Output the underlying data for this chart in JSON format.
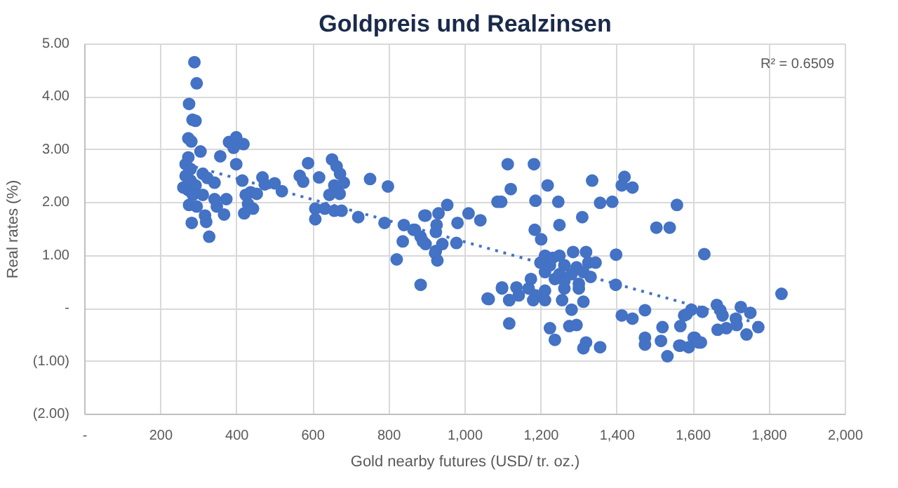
{
  "chart_data": {
    "type": "scatter",
    "title": "Goldpreis und Realzinsen",
    "xlabel": "Gold nearby futures (USD/ tr. oz.)",
    "ylabel": "Real rates (%)",
    "series": [
      {
        "color": "#4472c4",
        "marker": "circle",
        "x": [
          288,
          294,
          274,
          283,
          291,
          272,
          280,
          304,
          272,
          265,
          278,
          265,
          278,
          259,
          272,
          291,
          310,
          322,
          341,
          284,
          310,
          341,
          274,
          294,
          347,
          372,
          316,
          366,
          281,
          319,
          327,
          356,
          379,
          398,
          417,
          391,
          398,
          414,
          423,
          436,
          452,
          429,
          419,
          442,
          467,
          473,
          499,
          518,
          565,
          574,
          587,
          616,
          650,
          662,
          671,
          681,
          656,
          643,
          670,
          606,
          606,
          631,
          656,
          675,
          719,
          750,
          797,
          788,
          839,
          896,
          953,
          930,
          980,
          1009,
          1040,
          868,
          883,
          896,
          836,
          923,
          940,
          923,
          927,
          977,
          820,
          883,
          1085,
          1095,
          1062,
          1097,
          1116,
          1116,
          1112,
          1181,
          1120,
          1185,
          1217,
          1245,
          1334,
          1419,
          1412,
          1440,
          1355,
          1387,
          1557,
          1503,
          1538,
          1308,
          1183,
          1200,
          1248,
          893,
          925,
          864,
          889,
          921,
          1629,
          1397,
          1396,
          1210,
          1230,
          1248,
          1284,
          1318,
          1198,
          1223,
          1261,
          1293,
          1324,
          1343,
          1210,
          1248,
          1280,
          1311,
          1330,
          1173,
          1236,
          1261,
          1299,
          1135,
          1097,
          1167,
          1210,
          1261,
          1299,
          1141,
          1185,
          1059,
          1116,
          1179,
          1210,
          1255,
          1311,
          1280,
          1223,
          1236,
          1274,
          1293,
          1318,
          1311,
          1355,
          1412,
          1440,
          1473,
          1473,
          1473,
          1519,
          1515,
          1532,
          1566,
          1566,
          1588,
          1576,
          1595,
          1604,
          1620,
          1624,
          1832,
          1662,
          1671,
          1677,
          1725,
          1750,
          1712,
          1714,
          1664,
          1687,
          1771,
          1740,
          1582,
          1601,
          1614,
          1563
        ],
        "values": [
          4.66,
          4.26,
          3.87,
          3.57,
          3.55,
          3.22,
          3.16,
          2.97,
          2.86,
          2.73,
          2.64,
          2.51,
          2.42,
          2.29,
          2.24,
          2.33,
          2.55,
          2.47,
          2.38,
          2.15,
          2.15,
          2.07,
          1.96,
          1.93,
          1.93,
          2.07,
          1.76,
          1.78,
          1.62,
          1.64,
          1.36,
          2.88,
          3.15,
          3.24,
          3.11,
          3.04,
          2.73,
          2.42,
          2.15,
          2.2,
          2.17,
          1.98,
          1.8,
          1.89,
          2.48,
          2.35,
          2.37,
          2.22,
          2.51,
          2.4,
          2.75,
          2.48,
          2.82,
          2.69,
          2.55,
          2.38,
          2.33,
          2.15,
          2.17,
          1.89,
          1.69,
          1.89,
          1.85,
          1.85,
          1.73,
          2.45,
          2.31,
          1.62,
          1.58,
          1.76,
          1.96,
          1.8,
          1.62,
          1.8,
          1.67,
          1.49,
          1.36,
          1.22,
          1.27,
          1.45,
          1.22,
          1.09,
          0.91,
          1.24,
          0.93,
          0.45,
          2.02,
          2.02,
          0.18,
          0.4,
          0.16,
          -0.28,
          2.73,
          2.73,
          2.26,
          2.04,
          2.33,
          2.02,
          2.42,
          2.49,
          2.33,
          2.29,
          2.0,
          2.02,
          1.96,
          1.53,
          1.53,
          1.73,
          1.49,
          1.31,
          1.58,
          1.76,
          1.58,
          1.49,
          1.27,
          1.05,
          1.03,
          1.02,
          0.45,
          1.0,
          0.96,
          1.0,
          1.07,
          1.07,
          0.87,
          0.82,
          0.82,
          0.78,
          0.87,
          0.87,
          0.69,
          0.65,
          0.65,
          0.69,
          0.6,
          0.56,
          0.56,
          0.52,
          0.47,
          0.4,
          0.38,
          0.38,
          0.34,
          0.38,
          0.38,
          0.25,
          0.25,
          0.19,
          0.16,
          0.16,
          0.16,
          0.16,
          0.13,
          -0.02,
          -0.37,
          -0.59,
          -0.33,
          -0.31,
          -0.64,
          -0.75,
          -0.73,
          -0.13,
          -0.19,
          -0.03,
          -0.55,
          -0.68,
          -0.35,
          -0.61,
          -0.9,
          -0.33,
          -0.7,
          -0.73,
          -0.13,
          -0.02,
          -0.55,
          -0.64,
          -0.06,
          0.28,
          0.07,
          -0.03,
          -0.13,
          0.03,
          -0.08,
          -0.19,
          -0.31,
          -0.4,
          -0.37,
          -0.35,
          -0.49,
          -0.11,
          -0.55,
          -0.64,
          -0.7
        ]
      },
      {
        "type": "line",
        "color": "#4472c4",
        "line_style": "dotted",
        "x": [
          290,
          1780
        ],
        "values": [
          2.68,
          -0.3
        ]
      }
    ],
    "annotations": [
      "R² = 0.6509"
    ],
    "xlim": [
      0,
      2000
    ],
    "ylim": [
      -2,
      5
    ],
    "xticks": [
      {
        "value": 0,
        "label": "-"
      },
      200,
      400,
      600,
      800,
      {
        "value": 1000,
        "label": "1,000"
      },
      {
        "value": 1200,
        "label": "1,200"
      },
      {
        "value": 1400,
        "label": "1,400"
      },
      {
        "value": 1600,
        "label": "1,600"
      },
      {
        "value": 1800,
        "label": "1,800"
      },
      {
        "value": 2000,
        "label": "2,000"
      }
    ],
    "yticks": [
      {
        "value": -2,
        "label": "(2.00)"
      },
      {
        "value": -1,
        "label": "(1.00)"
      },
      {
        "value": 0,
        "label": "-"
      },
      {
        "value": 1,
        "label": "1.00"
      },
      {
        "value": 2,
        "label": "2.00"
      },
      {
        "value": 3,
        "label": "3.00"
      },
      {
        "value": 4,
        "label": "4.00"
      },
      {
        "value": 5,
        "label": "5.00"
      }
    ],
    "grid": true
  }
}
